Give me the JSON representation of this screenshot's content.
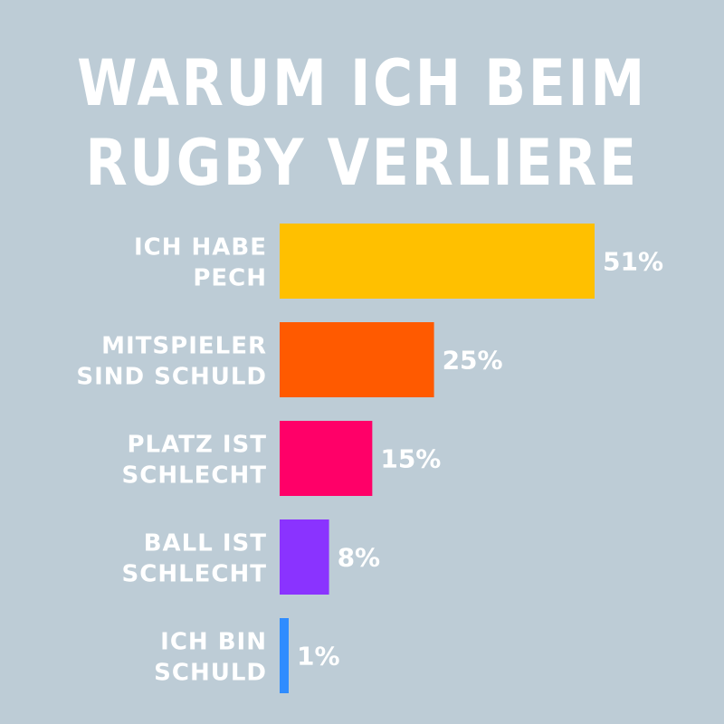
{
  "colors": {
    "background": "#bdccd6",
    "text": "#ffffff"
  },
  "chart_data": {
    "type": "bar",
    "orientation": "horizontal",
    "title_lines": [
      "WARUM ICH BEIM",
      "RUGBY VERLIERE"
    ],
    "categories": [
      [
        "ICH HABE",
        "PECH"
      ],
      [
        "MITSPIELER",
        "SIND SCHULD"
      ],
      [
        "PLATZ IST",
        "SCHLECHT"
      ],
      [
        "BALL IST",
        "SCHLECHT"
      ],
      [
        "ICH BIN",
        "SCHULD"
      ]
    ],
    "values": [
      51,
      25,
      15,
      8,
      1
    ],
    "value_labels": [
      "51%",
      "25%",
      "15%",
      "8%",
      "1%"
    ],
    "bar_colors": [
      "#ffc000",
      "#ff5a00",
      "#ff0068",
      "#8a33ff",
      "#2f8cff"
    ],
    "xlim": [
      0,
      51
    ],
    "grid": false,
    "legend": "none"
  }
}
